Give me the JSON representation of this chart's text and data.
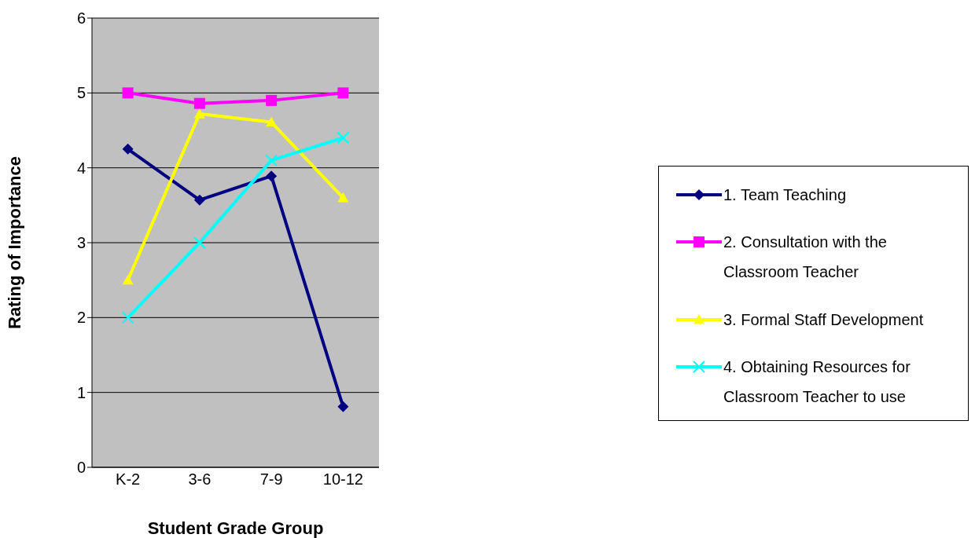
{
  "chart_data": {
    "type": "line",
    "xlabel": "Student Grade Group",
    "ylabel": "Rating of Importance",
    "categories": [
      "K-2",
      "3-6",
      "7-9",
      "10-12"
    ],
    "series": [
      {
        "name": "1. Team Teaching",
        "color": "#000080",
        "marker": "diamond",
        "values": [
          4.25,
          3.57,
          3.89,
          0.81
        ]
      },
      {
        "name": "2. Consultation with the Classroom Teacher",
        "color": "#ff00ff",
        "marker": "square",
        "values": [
          5.0,
          4.86,
          4.9,
          5.0
        ]
      },
      {
        "name": "3. Formal Staff Development",
        "color": "#ffff00",
        "marker": "triangle",
        "values": [
          2.5,
          4.72,
          4.61,
          3.6
        ]
      },
      {
        "name": "4. Obtaining Resources for Classroom Teacher to use",
        "color": "#00ffff",
        "marker": "cross",
        "values": [
          2.0,
          3.0,
          4.1,
          4.4
        ]
      }
    ],
    "ylim": [
      0,
      6
    ],
    "yticks": [
      0,
      1,
      2,
      3,
      4,
      5,
      6
    ],
    "grid": "y",
    "legend": "right",
    "line_style": "solid"
  }
}
